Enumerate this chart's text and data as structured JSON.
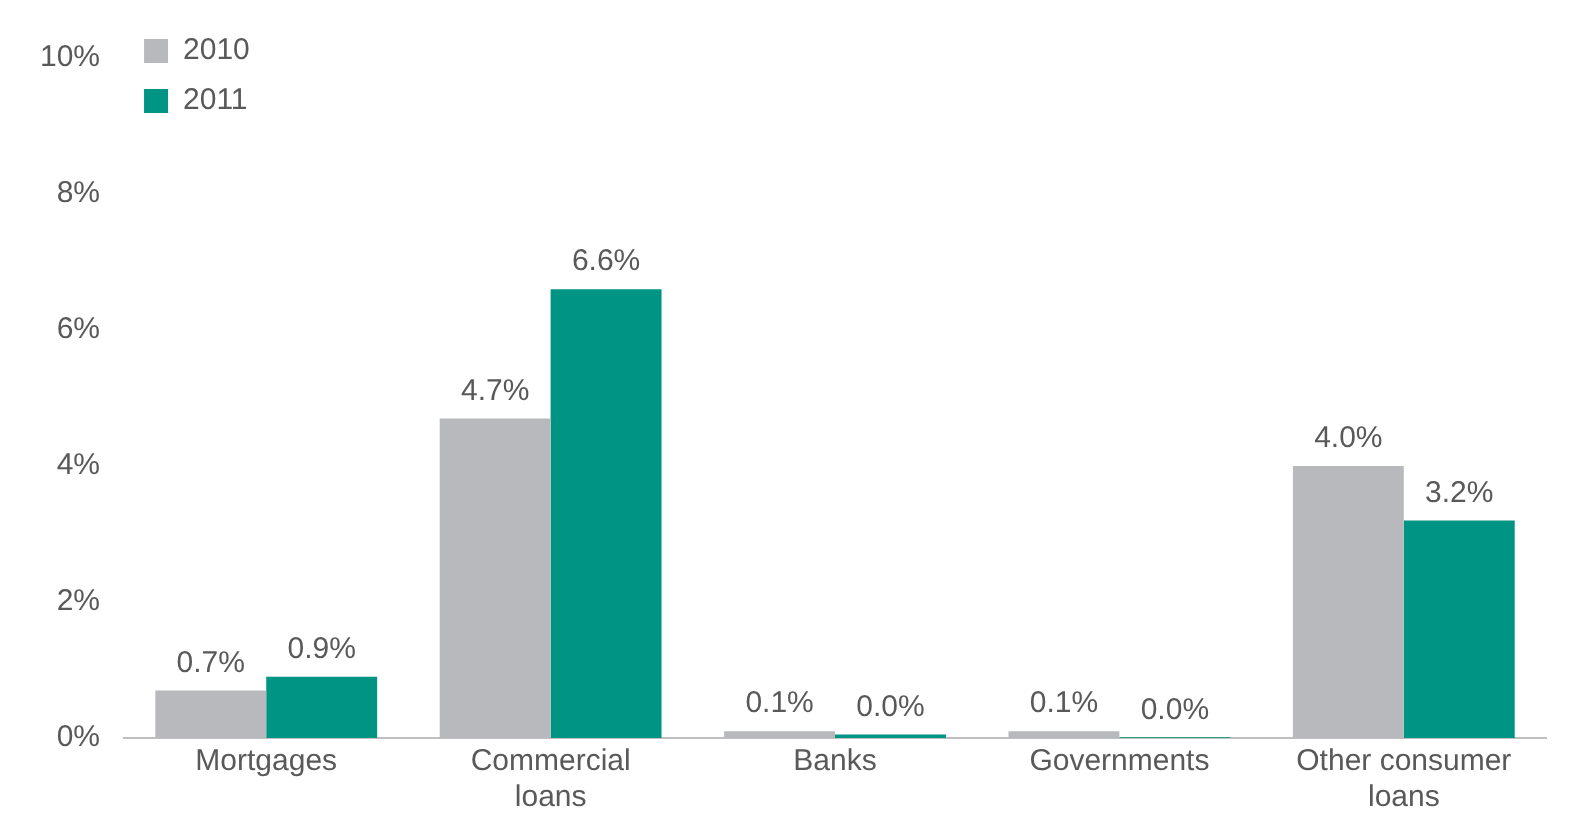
{
  "chart_data": {
    "type": "bar",
    "categories": [
      "Mortgages",
      "Commercial loans",
      "Banks",
      "Governments",
      "Other consumer loans"
    ],
    "series": [
      {
        "name": "2010",
        "color": "#b7b9bc",
        "values": [
          0.7,
          4.7,
          0.1,
          0.1,
          4.0
        ],
        "value_labels": [
          "0.7%",
          "4.7%",
          "0.1%",
          "0.1%",
          "4.0%"
        ]
      },
      {
        "name": "2011",
        "color": "#009484",
        "values": [
          0.9,
          6.6,
          0.05,
          0.01,
          3.2
        ],
        "value_labels": [
          "0.9%",
          "6.6%",
          "0.0%",
          "0.0%",
          "3.2%"
        ]
      }
    ],
    "ylim": [
      0,
      10
    ],
    "yticks": [
      {
        "value": 0,
        "label": "0%"
      },
      {
        "value": 2,
        "label": "2%"
      },
      {
        "value": 4,
        "label": "4%"
      },
      {
        "value": 6,
        "label": "6%"
      },
      {
        "value": 8,
        "label": "8%"
      },
      {
        "value": 10,
        "label": "10%"
      }
    ],
    "grid": false,
    "legend": "top left"
  }
}
